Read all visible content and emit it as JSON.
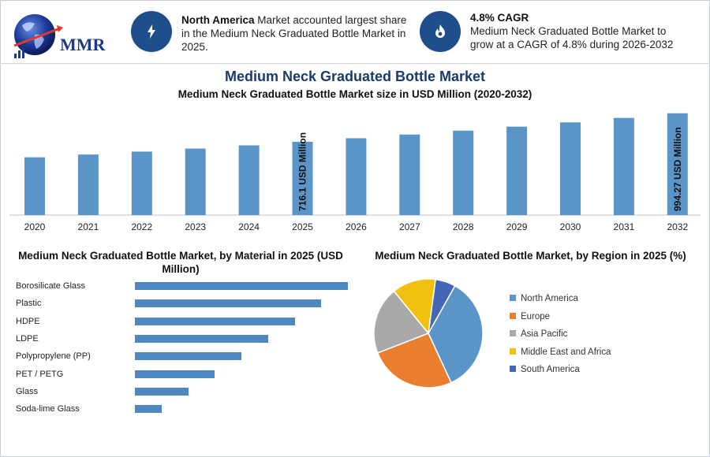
{
  "header": {
    "logo_text": "MMR",
    "info1": {
      "bold": "North America",
      "text": " Market accounted largest share in the Medium Neck Graduated Bottle Market in 2025.",
      "icon": "lightning-icon"
    },
    "info2": {
      "bold": "4.8% CAGR",
      "text": "Medium Neck Graduated Bottle Market to grow at a CAGR of 4.8% during 2026-2032",
      "icon": "flame-icon"
    },
    "accent_color": "#1f4e8c"
  },
  "title": "Medium Neck Graduated Bottle Market",
  "chart_data": [
    {
      "type": "bar",
      "title": "Medium Neck Graduated Bottle Market size in USD Million (2020-2032)",
      "categories": [
        "2020",
        "2021",
        "2022",
        "2023",
        "2024",
        "2025",
        "2026",
        "2027",
        "2028",
        "2029",
        "2030",
        "2031",
        "2032"
      ],
      "values": [
        564.4,
        591.5,
        619.9,
        649.6,
        680.8,
        716.1,
        750.5,
        786.5,
        824.3,
        863.8,
        905.3,
        948.7,
        994.27
      ],
      "data_labels": {
        "2025": "716.1 USD Million",
        "2032": "994.27 USD Million"
      },
      "color": "#5b95c8",
      "ylim": [
        0,
        1000
      ]
    },
    {
      "type": "bar",
      "orientation": "horizontal",
      "title": "Medium Neck Graduated Bottle Market, by Material in 2025 (USD Million)",
      "categories": [
        "Borosilicate Glass",
        "Plastic",
        "HDPE",
        "LDPE",
        "Polypropylene (PP)",
        "PET / PETG",
        "Glass",
        "Soda-lime Glass"
      ],
      "values": [
        8,
        7,
        6,
        5,
        4,
        3,
        2,
        1
      ],
      "color": "#4f88c0"
    },
    {
      "type": "pie",
      "title": "Medium Neck Graduated Bottle Market, by Region in 2025 (%)",
      "labels": [
        "North America",
        "Europe",
        "Asia Pacific",
        "Middle East and Africa",
        "South America"
      ],
      "values": [
        35,
        26,
        20,
        13,
        6
      ],
      "colors": [
        "#5b95c8",
        "#e87e2e",
        "#a9a9a9",
        "#f2c10f",
        "#4467b5"
      ]
    }
  ]
}
